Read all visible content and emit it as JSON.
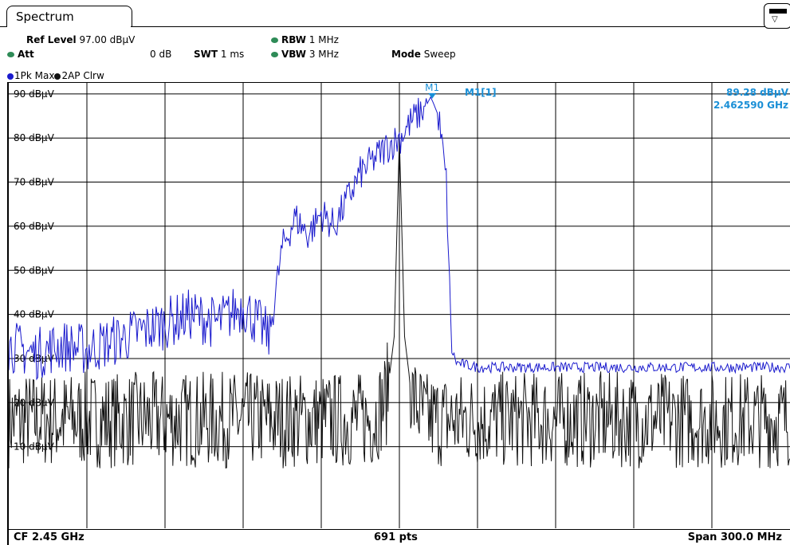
{
  "tab": {
    "label": "Spectrum"
  },
  "header": {
    "ref_level_label": "Ref Level",
    "ref_level_value": "97.00 dBµV",
    "att_label": "Att",
    "att_value": "0 dB",
    "swt_label": "SWT",
    "swt_value": "1 ms",
    "rbw_label": "RBW",
    "rbw_value": "1 MHz",
    "vbw_label": "VBW",
    "vbw_value": "3 MHz",
    "mode_label": "Mode",
    "mode_value": "Sweep"
  },
  "traces": [
    {
      "label": "1Pk Max",
      "color": "#1a1acd"
    },
    {
      "label": "2AP Clrw",
      "color": "#111111"
    }
  ],
  "marker": {
    "name": "M1",
    "readout_label": "M1[1]",
    "level": "89.28 dBµV",
    "frequency": "2.462590 GHz",
    "color": "#1a8fd6"
  },
  "footer": {
    "cf": "CF 2.45 GHz",
    "points": "691 pts",
    "span": "Span 300.0 MHz"
  },
  "chart_data": {
    "type": "line",
    "x_range_ghz": [
      2.3,
      2.6
    ],
    "y_ticks": [
      "90 dBµV",
      "80 dBµV",
      "70 dBµV",
      "60 dBµV",
      "50 dBµV",
      "40 dBµV",
      "30 dBµV",
      "20 dBµV",
      "10 dBµV"
    ],
    "ylim": [
      0,
      100
    ],
    "grid": true,
    "series": [
      {
        "name": "1Pk Max",
        "color": "#1a1acd",
        "x_ghz": [
          2.3,
          2.31,
          2.32,
          2.33,
          2.34,
          2.35,
          2.36,
          2.37,
          2.38,
          2.39,
          2.4,
          2.405,
          2.41,
          2.415,
          2.42,
          2.425,
          2.43,
          2.435,
          2.44,
          2.445,
          2.45,
          2.455,
          2.46,
          2.462,
          2.463,
          2.465,
          2.468,
          2.47,
          2.472,
          2.48,
          2.5,
          2.52,
          2.54,
          2.56,
          2.58,
          2.6
        ],
        "y_dbuv": [
          33,
          31,
          33,
          32,
          34,
          36,
          38,
          40,
          38,
          42,
          35,
          55,
          62,
          58,
          63,
          60,
          66,
          72,
          75,
          78,
          80,
          84,
          87,
          89.28,
          88,
          85,
          70,
          32,
          29,
          28,
          28,
          28,
          28,
          28,
          28,
          28
        ]
      },
      {
        "name": "2AP Clrw",
        "color": "#111111",
        "x_ghz": [
          2.3,
          2.35,
          2.4,
          2.44,
          2.445,
          2.448,
          2.45,
          2.452,
          2.455,
          2.46,
          2.5,
          2.55,
          2.6
        ],
        "y_dbuv": [
          15,
          15,
          15,
          15,
          20,
          35,
          80,
          35,
          20,
          15,
          15,
          15,
          15
        ]
      }
    ]
  }
}
